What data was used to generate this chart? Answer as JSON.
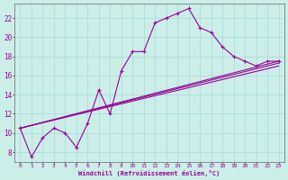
{
  "xlabel": "Windchill (Refroidissement éolien,°C)",
  "bg_color": "#cceee8",
  "grid_color": "#aaddda",
  "line_color": "#990099",
  "spine_color": "#666666",
  "xlim": [
    -0.5,
    23.5
  ],
  "ylim": [
    7.0,
    23.5
  ],
  "yticks": [
    8,
    10,
    12,
    14,
    16,
    18,
    20,
    22
  ],
  "xticks": [
    0,
    1,
    2,
    3,
    4,
    5,
    6,
    7,
    8,
    9,
    10,
    11,
    12,
    13,
    14,
    15,
    16,
    17,
    18,
    19,
    20,
    21,
    22,
    23
  ],
  "main_x": [
    0,
    1,
    2,
    3,
    4,
    5,
    6,
    7,
    8,
    9,
    10,
    11,
    12,
    13,
    14,
    15,
    16,
    17,
    18,
    19,
    20,
    21,
    22,
    23
  ],
  "main_y": [
    10.5,
    7.5,
    9.5,
    10.5,
    10.0,
    8.5,
    11.0,
    14.5,
    12.0,
    16.5,
    18.5,
    18.5,
    21.5,
    22.0,
    22.5,
    23.0,
    21.0,
    20.5,
    19.0,
    18.0,
    17.5,
    17.0,
    17.5,
    17.5
  ],
  "line1_x": [
    0,
    23
  ],
  "line1_y": [
    10.5,
    17.0
  ],
  "line2_x": [
    0,
    23
  ],
  "line2_y": [
    10.5,
    17.3
  ],
  "line3_x": [
    0,
    23
  ],
  "line3_y": [
    10.5,
    17.5
  ]
}
